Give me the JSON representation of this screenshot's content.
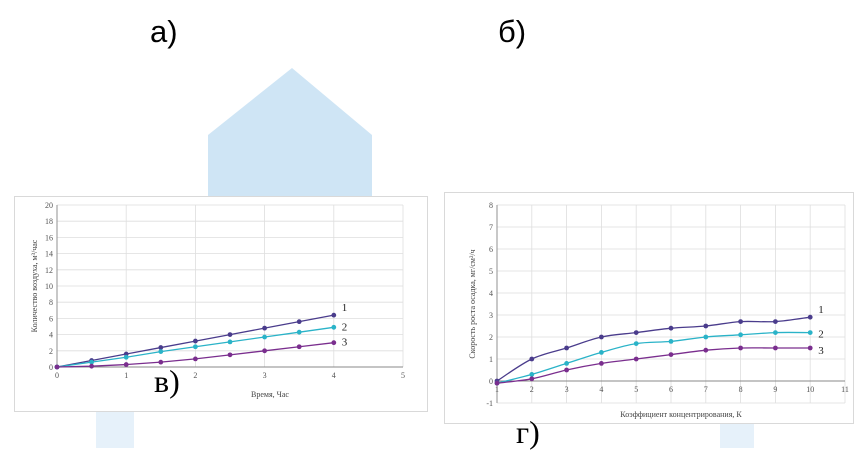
{
  "panel_labels": {
    "a": "а)",
    "b": "б)",
    "v": "в)",
    "g": "г)"
  },
  "watermark_color": "#cfe5f5",
  "chart_data": [
    {
      "type": "line",
      "title": "",
      "xlabel": "Время, Час",
      "ylabel": "Количество воздуха, м³/час",
      "xlim": [
        0,
        5
      ],
      "ylim": [
        0,
        20
      ],
      "x_ticks": [
        0,
        1,
        2,
        3,
        4,
        5
      ],
      "y_ticks": [
        0,
        2,
        4,
        6,
        8,
        10,
        12,
        14,
        16,
        18,
        20
      ],
      "grid": true,
      "series": [
        {
          "name": "1",
          "color": "#4a3c8c",
          "x": [
            0,
            0.5,
            1,
            1.5,
            2,
            2.5,
            3,
            3.5,
            4
          ],
          "y": [
            0,
            0.8,
            1.6,
            2.4,
            3.2,
            4.0,
            4.8,
            5.6,
            6.4
          ]
        },
        {
          "name": "2",
          "color": "#2ab3c8",
          "x": [
            0,
            0.5,
            1,
            1.5,
            2,
            2.5,
            3,
            3.5,
            4
          ],
          "y": [
            0,
            0.6,
            1.2,
            1.9,
            2.5,
            3.1,
            3.7,
            4.3,
            4.9
          ]
        },
        {
          "name": "3",
          "color": "#7a2e8e",
          "x": [
            0,
            0.5,
            1,
            1.5,
            2,
            2.5,
            3,
            3.5,
            4
          ],
          "y": [
            0,
            0.1,
            0.3,
            0.6,
            1.0,
            1.5,
            2.0,
            2.5,
            3.0
          ]
        }
      ]
    },
    {
      "type": "line",
      "title": "",
      "xlabel": "Коэффициент концентрирования, К",
      "ylabel": "Скорость роста осадка, мг/см²/ч",
      "xlim": [
        1,
        11
      ],
      "ylim": [
        -1,
        8
      ],
      "x_ticks": [
        1,
        2,
        3,
        4,
        5,
        6,
        7,
        8,
        9,
        10,
        11
      ],
      "y_ticks": [
        -1,
        0,
        1,
        2,
        3,
        4,
        5,
        6,
        7,
        8
      ],
      "grid": true,
      "series": [
        {
          "name": "1",
          "color": "#4a3c8c",
          "x": [
            1,
            2,
            3,
            4,
            5,
            6,
            7,
            8,
            9,
            10
          ],
          "y": [
            0,
            1.0,
            1.5,
            2.0,
            2.2,
            2.4,
            2.5,
            2.7,
            2.7,
            2.9
          ]
        },
        {
          "name": "2",
          "color": "#2ab3c8",
          "x": [
            1,
            2,
            3,
            4,
            5,
            6,
            7,
            8,
            9,
            10
          ],
          "y": [
            -0.1,
            0.3,
            0.8,
            1.3,
            1.7,
            1.8,
            2.0,
            2.1,
            2.2,
            2.2
          ]
        },
        {
          "name": "3",
          "color": "#7a2e8e",
          "x": [
            1,
            2,
            3,
            4,
            5,
            6,
            7,
            8,
            9,
            10
          ],
          "y": [
            -0.1,
            0.1,
            0.5,
            0.8,
            1.0,
            1.2,
            1.4,
            1.5,
            1.5,
            1.5
          ]
        }
      ]
    }
  ]
}
